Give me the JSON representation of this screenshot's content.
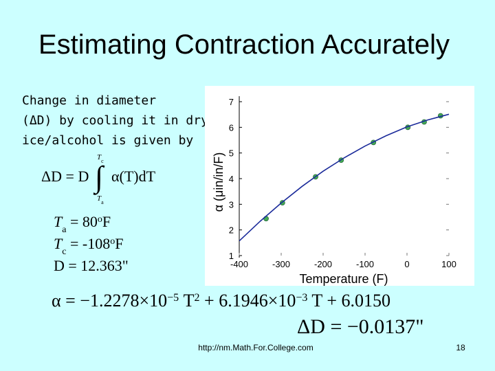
{
  "slide": {
    "title": "Estimating Contraction Accurately",
    "intro": [
      "Change in diameter",
      "(ΔD) by cooling it in dry",
      "ice/alcohol is given by"
    ],
    "integral": {
      "lhs": "ΔD = D",
      "sign": "∫",
      "upper": [
        {
          "t": "T"
        },
        {
          "t": "c",
          "pos": "sub"
        }
      ],
      "lower": [
        {
          "t": "T"
        },
        {
          "t": "a",
          "pos": "sub"
        }
      ],
      "integrand": "α(T)dT"
    },
    "givens": [
      [
        {
          "t": "T"
        },
        {
          "t": "a",
          "pos": "sub"
        },
        {
          "t": " = 80"
        },
        {
          "t": "o",
          "pos": "sup"
        },
        {
          "t": "F"
        }
      ],
      [
        {
          "t": "T"
        },
        {
          "t": "c",
          "pos": "sub"
        },
        {
          "t": " = -108"
        },
        {
          "t": "o",
          "pos": "sup"
        },
        {
          "t": "F"
        }
      ],
      [
        {
          "t": "D = 12.363\""
        }
      ]
    ],
    "alpha_equation": [
      {
        "t": "α = −1.2278×10"
      },
      {
        "t": "−5",
        "pos": "sup"
      },
      {
        "t": " T"
      },
      {
        "t": "2",
        "pos": "sup"
      },
      {
        "t": " + 6.1946×10"
      },
      {
        "t": "−3",
        "pos": "sup"
      },
      {
        "t": " T + 6.0150"
      }
    ],
    "result": "ΔD = −0.0137\"",
    "url": "http://nm.Math.For.College.com",
    "page": "18"
  },
  "chart_data": {
    "type": "scatter",
    "xlabel": "Temperature (F)",
    "ylabel": "α (μin/in/F)",
    "xlim": [
      -400,
      100
    ],
    "ylim": [
      1,
      7
    ],
    "xticks": [
      -400,
      -300,
      -200,
      -100,
      0,
      100
    ],
    "yticks": [
      1,
      2,
      3,
      4,
      5,
      6,
      7
    ],
    "series": [
      {
        "color": "#44aa55",
        "x": [
          -336,
          -297,
          -218,
          -157,
          -80,
          2,
          41,
          80
        ],
        "values": [
          2.44,
          3.06,
          4.07,
          4.72,
          5.41,
          6.0,
          6.21,
          6.45
        ]
      },
      {
        "color": "#1a2a9a",
        "line": true,
        "x": [
          -400,
          -350,
          -300,
          -250,
          -200,
          -150,
          -100,
          -50,
          0,
          50,
          100
        ],
        "values": [
          1.57,
          2.34,
          3.05,
          3.7,
          4.29,
          4.81,
          5.27,
          5.67,
          6.02,
          6.29,
          6.51
        ]
      }
    ]
  }
}
